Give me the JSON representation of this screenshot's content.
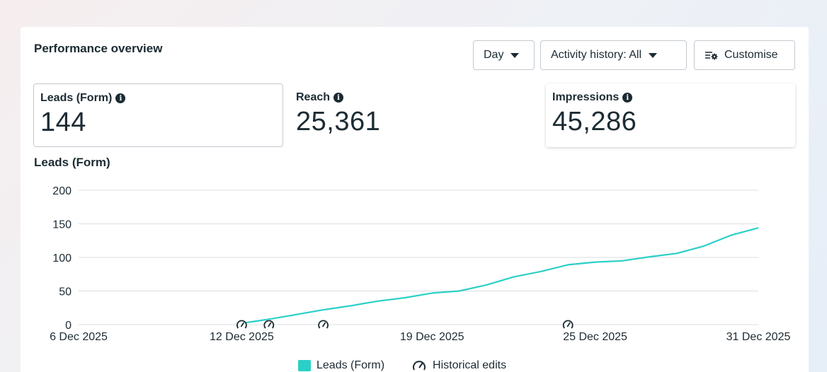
{
  "header": {
    "title": "Performance overview",
    "day_label": "Day",
    "activity_label": "Activity history: All",
    "customise_label": "Customise"
  },
  "metrics": [
    {
      "label": "Leads (Form)",
      "value": "144"
    },
    {
      "label": "Reach",
      "value": "25,361"
    },
    {
      "label": "Impressions",
      "value": "45,286"
    }
  ],
  "colors": {
    "series": "#2ad0c7",
    "text": "#1c2b33",
    "grid": "#dadde1"
  },
  "legend": {
    "series_label": "Leads (Form)",
    "edits_label": "Historical edits"
  },
  "chart_data": {
    "type": "line",
    "title": "Leads (Form)",
    "xlabel": "",
    "ylabel": "",
    "ylim": [
      0,
      200
    ],
    "yticks": [
      0,
      50,
      100,
      150,
      200
    ],
    "xlim": [
      "2025-12-06",
      "2025-12-31"
    ],
    "xticks": [
      "6 Dec 2025",
      "12 Dec 2025",
      "19 Dec 2025",
      "25 Dec 2025",
      "31 Dec 2025"
    ],
    "grid": true,
    "legend_position": "bottom",
    "series": [
      {
        "name": "Leads (Form)",
        "x": [
          "2025-12-12",
          "2025-12-13",
          "2025-12-14",
          "2025-12-15",
          "2025-12-16",
          "2025-12-17",
          "2025-12-18",
          "2025-12-19",
          "2025-12-20",
          "2025-12-21",
          "2025-12-22",
          "2025-12-23",
          "2025-12-24",
          "2025-12-25",
          "2025-12-26",
          "2025-12-27",
          "2025-12-28",
          "2025-12-29",
          "2025-12-30",
          "2025-12-31"
        ],
        "values": [
          2,
          8,
          15,
          22,
          28,
          35,
          40,
          47,
          50,
          59,
          71,
          79,
          89,
          93,
          95,
          101,
          106,
          117,
          133,
          144
        ]
      }
    ],
    "historical_edits": [
      "2025-12-12",
      "2025-12-13",
      "2025-12-15",
      "2025-12-24"
    ]
  }
}
